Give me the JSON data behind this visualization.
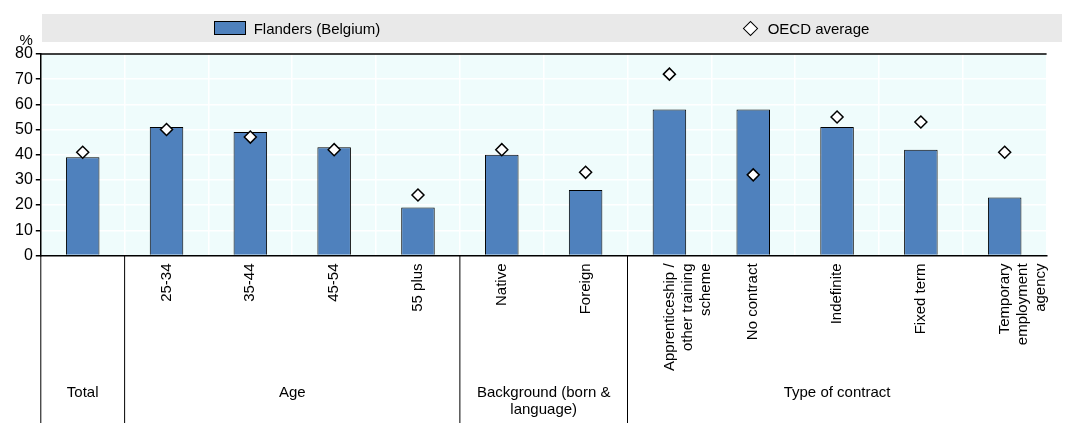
{
  "chart_data": {
    "type": "bar",
    "ylabel": "%",
    "categories": [
      null,
      "25-34",
      "35-44",
      "45-54",
      "55 plus",
      "Native",
      "Foreign",
      "Apprenticeship / other training scheme",
      "No contract",
      "Indefinite",
      "Fixed term",
      "Temporary employment agency"
    ],
    "annotations": [
      "Total",
      "Age",
      "Background (born & language)",
      "Type of contract"
    ],
    "series": [
      {
        "name": "Flanders (Belgium)",
        "color": "#4f81bd",
        "values": [
          39,
          51,
          49,
          43,
          19,
          40,
          26,
          58,
          58,
          51,
          42,
          23
        ]
      },
      {
        "name": "OECD average",
        "type": "scatter",
        "color": "#ffffff",
        "values": [
          41,
          50,
          47,
          42,
          24,
          42,
          33,
          72,
          32,
          55,
          53,
          41
        ]
      }
    ],
    "ylim": [
      0,
      80
    ],
    "yticks": [
      0,
      10,
      20,
      30,
      40,
      50,
      60,
      70,
      80
    ],
    "grid": true,
    "legend": "top",
    "marker": "diamond"
  }
}
